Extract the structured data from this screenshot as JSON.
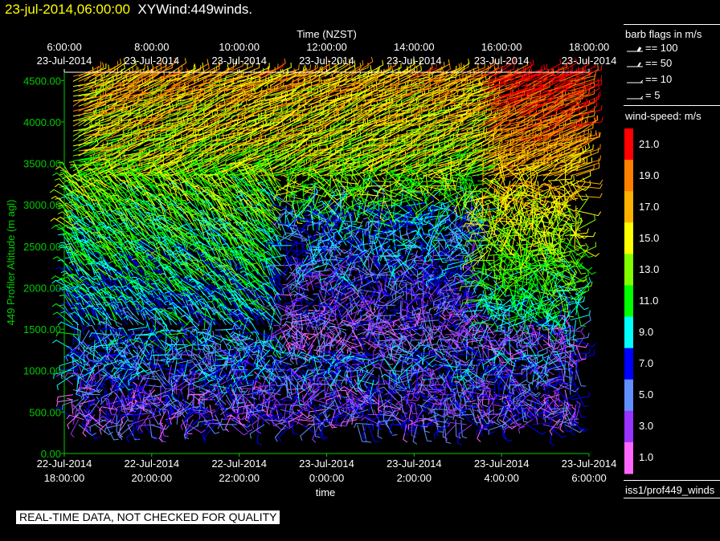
{
  "header": {
    "datetime": "23-jul-2014,06:00:00",
    "product": "XYWind:449winds."
  },
  "notice": "REAL-TIME DATA, NOT CHECKED FOR QUALITY",
  "colors": {
    "axis": "#00cc00",
    "text": "#ffffff",
    "datetime": "#ffff00"
  },
  "chart_data": {
    "type": "wind-barb",
    "top_axis_title": "Time (NZST)",
    "xlabel": "time",
    "ylabel": "449 Profiler Altitude (m agl)",
    "ylim": [
      0,
      4600
    ],
    "xlim_hours": [
      18,
      30
    ],
    "bottom_ticks": [
      {
        "h": 18,
        "line1": "22-Jul-2014",
        "line2": "18:00:00"
      },
      {
        "h": 20,
        "line1": "22-Jul-2014",
        "line2": "20:00:00"
      },
      {
        "h": 22,
        "line1": "22-Jul-2014",
        "line2": "22:00:00"
      },
      {
        "h": 24,
        "line1": "23-Jul-2014",
        "line2": "0:00:00"
      },
      {
        "h": 26,
        "line1": "23-Jul-2014",
        "line2": "2:00:00"
      },
      {
        "h": 28,
        "line1": "23-Jul-2014",
        "line2": "4:00:00"
      },
      {
        "h": 30,
        "line1": "23-Jul-2014",
        "line2": "6:00:00"
      }
    ],
    "top_ticks": [
      {
        "h": 18,
        "line1": "6:00:00",
        "line2": "23-Jul-2014"
      },
      {
        "h": 20,
        "line1": "8:00:00",
        "line2": "23-Jul-2014"
      },
      {
        "h": 22,
        "line1": "10:00:00",
        "line2": "23-Jul-2014"
      },
      {
        "h": 24,
        "line1": "12:00:00",
        "line2": "23-Jul-2014"
      },
      {
        "h": 26,
        "line1": "14:00:00",
        "line2": "23-Jul-2014"
      },
      {
        "h": 28,
        "line1": "16:00:00",
        "line2": "23-Jul-2014"
      },
      {
        "h": 30,
        "line1": "18:00:00",
        "line2": "23-Jul-2014"
      }
    ],
    "y_ticks": [
      "0.00",
      "500.00",
      "1000.00",
      "1500.00",
      "2000.00",
      "2500.00",
      "3000.00",
      "3500.00",
      "4000.00",
      "4500.00"
    ],
    "y_tick_values": [
      0,
      500,
      1000,
      1500,
      2000,
      2500,
      3000,
      3500,
      4000,
      4500
    ]
  },
  "barb_legend": {
    "title": "barb flags in m/s",
    "items": [
      "== 100",
      "== 50",
      "== 10",
      "= 5"
    ]
  },
  "colorbar": {
    "title": "wind-speed: m/s",
    "labels": [
      "21.0",
      "19.0",
      "17.0",
      "15.0",
      "13.0",
      "11.0",
      "9.0",
      "7.0",
      "5.0",
      "3.0",
      "1.0"
    ],
    "colors": [
      "#ff0000",
      "#ff8000",
      "#ffb000",
      "#ffff00",
      "#80ff00",
      "#00ff00",
      "#00ffff",
      "#0000ff",
      "#6090ff",
      "#9933ff",
      "#ff66ff"
    ]
  },
  "source": "iss1/prof449_winds"
}
